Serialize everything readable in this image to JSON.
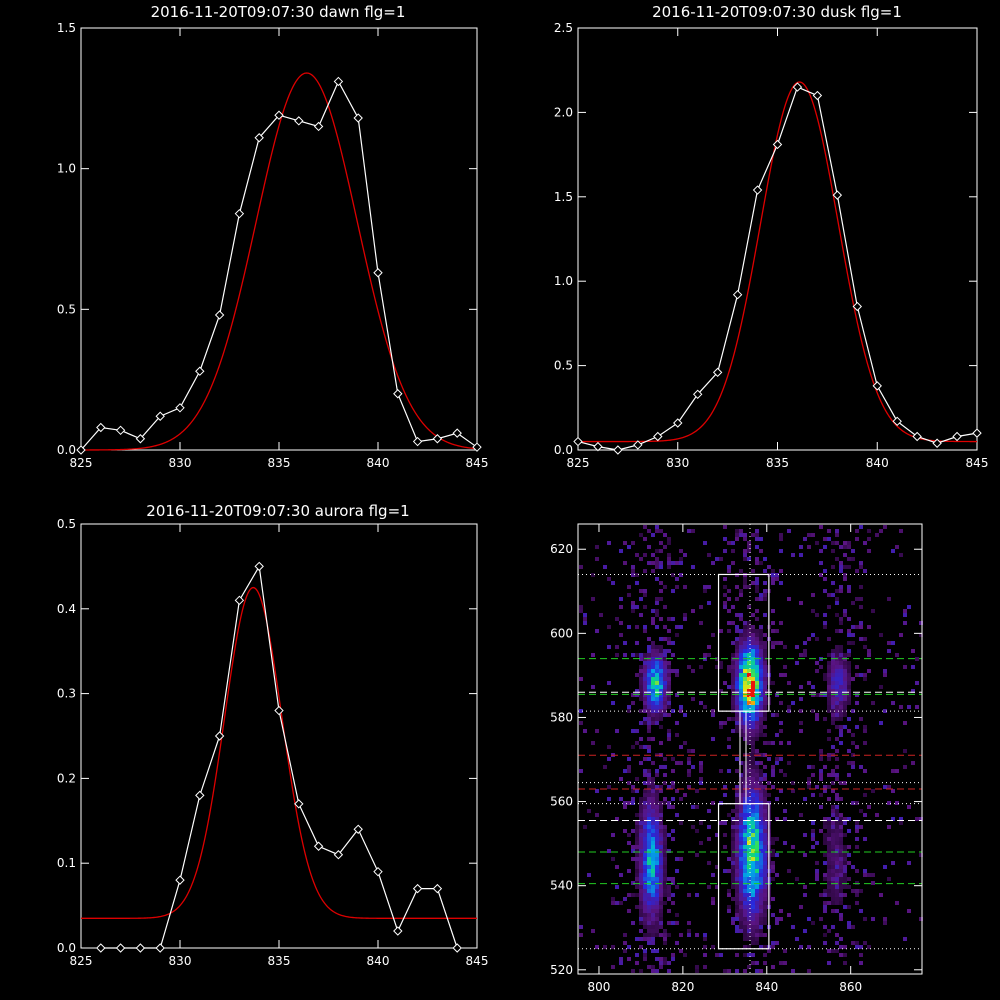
{
  "colors": {
    "background": "#000000",
    "axis": "#ffffff",
    "data_line": "#ffffff",
    "fit_line": "#dd0000",
    "box": "#ffffff",
    "green_dash": "#22cc22",
    "red_dash": "#cc2222",
    "white_dash": "#ffffff"
  },
  "chart_data": [
    {
      "id": "dawn",
      "type": "line",
      "title": "2016-11-20T09:07:30 dawn flg=1",
      "xlim": [
        825,
        845
      ],
      "ylim": [
        0,
        1.5
      ],
      "xticks": [
        825,
        830,
        835,
        840,
        845
      ],
      "xtick_labels": [
        "825",
        "830",
        "835",
        "840",
        "845"
      ],
      "yticks": [
        0,
        0.5,
        1.0,
        1.5
      ],
      "ytick_labels": [
        "0.0",
        "0.5",
        "1.0",
        "1.5"
      ],
      "series": [
        {
          "role": "data",
          "marker": "diamond",
          "x": [
            825,
            826,
            827,
            828,
            829,
            830,
            831,
            832,
            833,
            834,
            835,
            836,
            837,
            838,
            839,
            840,
            841,
            842,
            843,
            844,
            845
          ],
          "y": [
            0.0,
            0.08,
            0.07,
            0.04,
            0.12,
            0.15,
            0.28,
            0.48,
            0.84,
            1.11,
            1.19,
            1.17,
            1.15,
            1.31,
            1.18,
            0.63,
            0.2,
            0.03,
            0.04,
            0.06,
            0.01
          ]
        },
        {
          "role": "fit",
          "model": "gaussian",
          "amplitude": 1.34,
          "center": 836.4,
          "sigma": 2.55,
          "offset": 0.0
        }
      ]
    },
    {
      "id": "dusk",
      "type": "line",
      "title": "2016-11-20T09:07:30 dusk flg=1",
      "xlim": [
        825,
        845
      ],
      "ylim": [
        0,
        2.5
      ],
      "xticks": [
        825,
        830,
        835,
        840,
        845
      ],
      "xtick_labels": [
        "825",
        "830",
        "835",
        "840",
        "845"
      ],
      "yticks": [
        0,
        0.5,
        1.0,
        1.5,
        2.0,
        2.5
      ],
      "ytick_labels": [
        "0.0",
        "0.5",
        "1.0",
        "1.5",
        "2.0",
        "2.5"
      ],
      "series": [
        {
          "role": "data",
          "marker": "diamond",
          "x": [
            825,
            826,
            827,
            828,
            829,
            830,
            831,
            832,
            833,
            834,
            835,
            836,
            837,
            838,
            839,
            840,
            841,
            842,
            843,
            844,
            845
          ],
          "y": [
            0.05,
            0.02,
            0.0,
            0.03,
            0.08,
            0.16,
            0.33,
            0.46,
            0.92,
            1.54,
            1.81,
            2.15,
            2.1,
            1.51,
            0.85,
            0.38,
            0.17,
            0.08,
            0.04,
            0.08,
            0.1
          ]
        },
        {
          "role": "fit",
          "model": "gaussian",
          "amplitude": 2.13,
          "center": 836.1,
          "sigma": 1.95,
          "offset": 0.05
        }
      ]
    },
    {
      "id": "aurora",
      "type": "line",
      "title": "2016-11-20T09:07:30 aurora flg=1",
      "xlim": [
        825,
        845
      ],
      "ylim": [
        0,
        0.5
      ],
      "xticks": [
        825,
        830,
        835,
        840,
        845
      ],
      "xtick_labels": [
        "825",
        "830",
        "835",
        "840",
        "845"
      ],
      "yticks": [
        0,
        0.1,
        0.2,
        0.3,
        0.4,
        0.5
      ],
      "ytick_labels": [
        "0.0",
        "0.1",
        "0.2",
        "0.3",
        "0.4",
        "0.5"
      ],
      "series": [
        {
          "role": "data",
          "marker": "diamond",
          "x": [
            826,
            827,
            828,
            829,
            830,
            831,
            832,
            833,
            834,
            835,
            836,
            837,
            838,
            839,
            840,
            841,
            842,
            843,
            844
          ],
          "y": [
            0.0,
            0.0,
            0.0,
            0.0,
            0.08,
            0.18,
            0.25,
            0.41,
            0.45,
            0.28,
            0.17,
            0.12,
            0.11,
            0.14,
            0.09,
            0.02,
            0.07,
            0.07,
            0.0
          ]
        },
        {
          "role": "fit",
          "model": "gaussian",
          "amplitude": 0.39,
          "center": 833.7,
          "sigma": 1.45,
          "offset": 0.035
        }
      ]
    },
    {
      "id": "spectral-image",
      "type": "heatmap",
      "title": "",
      "xlim": [
        795,
        877
      ],
      "ylim": [
        519,
        626
      ],
      "xticks": [
        800,
        820,
        840,
        860
      ],
      "xtick_labels": [
        "800",
        "820",
        "840",
        "860"
      ],
      "yticks": [
        520,
        540,
        560,
        580,
        600,
        620
      ],
      "ytick_labels": [
        "520",
        "540",
        "560",
        "580",
        "600",
        "620"
      ],
      "bright_blobs": [
        {
          "x": 813.5,
          "y": 588,
          "sx": 1.8,
          "sy": 4.5,
          "amp": 0.62
        },
        {
          "x": 812.5,
          "y": 546,
          "sx": 1.8,
          "sy": 9,
          "amp": 0.56
        },
        {
          "x": 836,
          "y": 588,
          "sx": 2.0,
          "sy": 6,
          "amp": 1.0
        },
        {
          "x": 836.5,
          "y": 548,
          "sx": 2.2,
          "sy": 10,
          "amp": 0.72
        },
        {
          "x": 857,
          "y": 588,
          "sx": 1.8,
          "sy": 5,
          "amp": 0.3
        },
        {
          "x": 856.5,
          "y": 546,
          "sx": 2.0,
          "sy": 9,
          "amp": 0.14
        }
      ],
      "boxes": [
        {
          "x0": 828.5,
          "x1": 840.5,
          "y0": 581.5,
          "y1": 614
        },
        {
          "x0": 828.5,
          "x1": 840.5,
          "y0": 525,
          "y1": 559.5
        }
      ],
      "vertical_dotted_x": 836,
      "white_dotted_y": [
        614,
        581.5,
        564.5,
        559.5,
        525
      ],
      "green_dashed_y": [
        594,
        585.5,
        548,
        540.5
      ],
      "red_dashed_y": [
        571,
        563
      ],
      "white_dashed_y": [
        586,
        555.5
      ]
    }
  ]
}
